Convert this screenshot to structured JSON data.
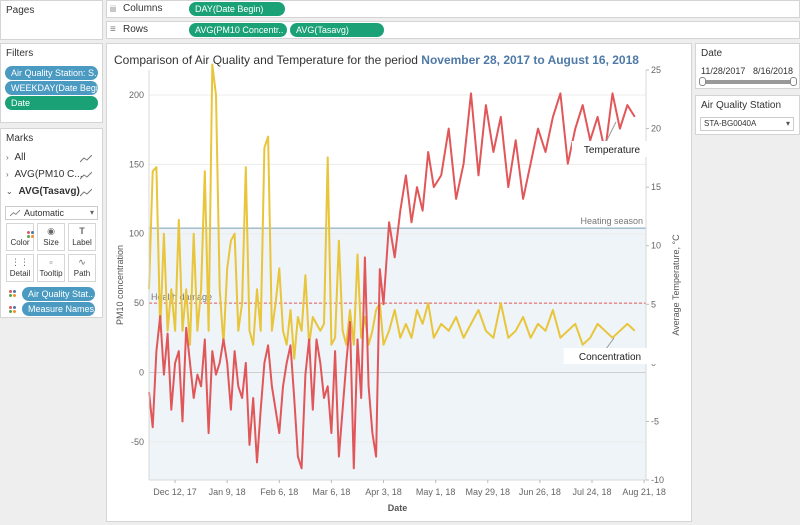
{
  "pages": {
    "title": "Pages"
  },
  "shelves": {
    "columns_label": "Columns",
    "columns_pills": [
      "DAY(Date Begin)"
    ],
    "rows_label": "Rows",
    "rows_pills": [
      "AVG(PM10 Concentr..",
      "AVG(Tasavg)"
    ]
  },
  "filters": {
    "title": "Filters",
    "items": [
      "Air Quality Station: S..",
      "WEEKDAY(Date Begi..",
      "Date"
    ]
  },
  "marks": {
    "title": "Marks",
    "items": [
      "All",
      "AVG(PM10 C...",
      "AVG(Tasavg)"
    ],
    "type": "Automatic",
    "buttons": [
      "Color",
      "Size",
      "Label",
      "Detail",
      "Tooltip",
      "Path"
    ],
    "fields": [
      "Air Quality Stat..",
      "Measure Names"
    ]
  },
  "chart": {
    "title_prefix": "Comparison of Air Quality and Temperature for the period ",
    "title_period": "November 28, 2017 to August 16, 2018"
  },
  "date_filter": {
    "title": "Date",
    "start": "11/28/2017",
    "end": "8/16/2018",
    "range_fraction": [
      0,
      1
    ]
  },
  "station_filter": {
    "title": "Air Quality Station",
    "value": "STA-BG0040A"
  },
  "colors": {
    "pm10": "#e8c53a",
    "temperature": "#e15759",
    "heating_band": "#eef4f8",
    "pill_green": "#1aa276",
    "pill_blue": "#4a9ac1",
    "title_accent": "#4e79a7"
  },
  "chart_data": {
    "type": "line",
    "xlabel": "Date",
    "ylabel_left": "PM10 concentration",
    "ylabel_right": "Average Temperature, °C",
    "x_range": [
      "2017-11-28",
      "2018-08-22"
    ],
    "x_ticks": [
      "Dec 12, 17",
      "Jan 9, 18",
      "Feb 6, 18",
      "Mar 6, 18",
      "Apr 3, 18",
      "May 1, 18",
      "May 29, 18",
      "Jun 26, 18",
      "Jul 24, 18",
      "Aug 21, 18"
    ],
    "x_tick_dates": [
      "2017-12-12",
      "2018-01-09",
      "2018-02-06",
      "2018-03-06",
      "2018-04-03",
      "2018-05-01",
      "2018-05-29",
      "2018-06-26",
      "2018-07-24",
      "2018-08-21"
    ],
    "ylim_left": [
      -77.5,
      218
    ],
    "ylim_right": [
      -10,
      25
    ],
    "yticks_left": [
      -50,
      0,
      50,
      100,
      150,
      200
    ],
    "yticks_right": [
      -10,
      -5,
      0,
      5,
      10,
      15,
      20,
      25
    ],
    "reference_lines": [
      {
        "label": "Heating season",
        "axis": "right",
        "value": 11.5
      },
      {
        "label": "Health damage",
        "axis": "left",
        "value": 50
      }
    ],
    "series": [
      {
        "name": "Concentration",
        "axis": "left",
        "x": [
          "2017-11-28",
          "2017-11-30",
          "2017-12-02",
          "2017-12-04",
          "2017-12-06",
          "2017-12-08",
          "2017-12-10",
          "2017-12-12",
          "2017-12-14",
          "2017-12-16",
          "2017-12-18",
          "2017-12-20",
          "2017-12-22",
          "2017-12-24",
          "2017-12-26",
          "2017-12-28",
          "2017-12-30",
          "2018-01-01",
          "2018-01-03",
          "2018-01-05",
          "2018-01-07",
          "2018-01-09",
          "2018-01-11",
          "2018-01-13",
          "2018-01-15",
          "2018-01-17",
          "2018-01-19",
          "2018-01-21",
          "2018-01-23",
          "2018-01-25",
          "2018-01-27",
          "2018-01-29",
          "2018-01-31",
          "2018-02-02",
          "2018-02-04",
          "2018-02-06",
          "2018-02-08",
          "2018-02-10",
          "2018-02-12",
          "2018-02-14",
          "2018-02-16",
          "2018-02-18",
          "2018-02-20",
          "2018-02-22",
          "2018-02-24",
          "2018-02-26",
          "2018-02-28",
          "2018-03-02",
          "2018-03-04",
          "2018-03-06",
          "2018-03-08",
          "2018-03-10",
          "2018-03-12",
          "2018-03-14",
          "2018-03-16",
          "2018-03-18",
          "2018-03-20",
          "2018-03-22",
          "2018-03-24",
          "2018-03-26",
          "2018-03-28",
          "2018-03-30",
          "2018-04-01",
          "2018-04-03",
          "2018-04-06",
          "2018-04-09",
          "2018-04-12",
          "2018-04-15",
          "2018-04-18",
          "2018-04-21",
          "2018-04-24",
          "2018-04-27",
          "2018-04-30",
          "2018-05-04",
          "2018-05-08",
          "2018-05-12",
          "2018-05-16",
          "2018-05-20",
          "2018-05-24",
          "2018-05-28",
          "2018-06-01",
          "2018-06-05",
          "2018-06-09",
          "2018-06-13",
          "2018-06-17",
          "2018-06-21",
          "2018-06-25",
          "2018-06-29",
          "2018-07-03",
          "2018-07-07",
          "2018-07-11",
          "2018-07-15",
          "2018-07-19",
          "2018-07-23",
          "2018-07-27",
          "2018-07-31",
          "2018-08-04",
          "2018-08-08",
          "2018-08-12",
          "2018-08-16"
        ],
        "values": [
          60,
          145,
          148,
          30,
          100,
          30,
          60,
          30,
          110,
          30,
          60,
          20,
          100,
          30,
          60,
          145,
          30,
          222,
          200,
          60,
          20,
          75,
          95,
          100,
          30,
          50,
          148,
          30,
          20,
          60,
          30,
          162,
          170,
          30,
          50,
          75,
          30,
          20,
          45,
          10,
          40,
          30,
          70,
          20,
          40,
          35,
          30,
          35,
          155,
          20,
          25,
          95,
          30,
          20,
          45,
          20,
          85,
          25,
          40,
          20,
          30,
          45,
          50,
          20,
          30,
          45,
          25,
          35,
          25,
          45,
          35,
          50,
          25,
          35,
          30,
          40,
          25,
          35,
          45,
          30,
          25,
          50,
          25,
          30,
          40,
          25,
          35,
          30,
          45,
          25,
          30,
          35,
          20,
          25,
          35,
          30,
          25,
          30,
          35,
          30
        ]
      },
      {
        "name": "Temperature",
        "axis": "right",
        "x": [
          "2017-11-28",
          "2017-11-30",
          "2017-12-02",
          "2017-12-04",
          "2017-12-06",
          "2017-12-08",
          "2017-12-10",
          "2017-12-12",
          "2017-12-14",
          "2017-12-16",
          "2017-12-18",
          "2017-12-20",
          "2017-12-22",
          "2017-12-24",
          "2017-12-26",
          "2017-12-28",
          "2017-12-30",
          "2018-01-01",
          "2018-01-03",
          "2018-01-05",
          "2018-01-07",
          "2018-01-09",
          "2018-01-11",
          "2018-01-13",
          "2018-01-15",
          "2018-01-17",
          "2018-01-19",
          "2018-01-21",
          "2018-01-23",
          "2018-01-25",
          "2018-01-27",
          "2018-01-29",
          "2018-01-31",
          "2018-02-02",
          "2018-02-04",
          "2018-02-06",
          "2018-02-08",
          "2018-02-10",
          "2018-02-12",
          "2018-02-14",
          "2018-02-16",
          "2018-02-18",
          "2018-02-20",
          "2018-02-22",
          "2018-02-24",
          "2018-02-26",
          "2018-02-28",
          "2018-03-02",
          "2018-03-04",
          "2018-03-06",
          "2018-03-08",
          "2018-03-10",
          "2018-03-12",
          "2018-03-14",
          "2018-03-16",
          "2018-03-18",
          "2018-03-20",
          "2018-03-22",
          "2018-03-24",
          "2018-03-26",
          "2018-03-28",
          "2018-03-30",
          "2018-04-01",
          "2018-04-03",
          "2018-04-06",
          "2018-04-09",
          "2018-04-12",
          "2018-04-15",
          "2018-04-18",
          "2018-04-21",
          "2018-04-24",
          "2018-04-27",
          "2018-04-30",
          "2018-05-04",
          "2018-05-08",
          "2018-05-12",
          "2018-05-16",
          "2018-05-20",
          "2018-05-24",
          "2018-05-28",
          "2018-06-01",
          "2018-06-05",
          "2018-06-09",
          "2018-06-13",
          "2018-06-17",
          "2018-06-21",
          "2018-06-25",
          "2018-06-29",
          "2018-07-03",
          "2018-07-07",
          "2018-07-11",
          "2018-07-15",
          "2018-07-19",
          "2018-07-23",
          "2018-07-27",
          "2018-07-31",
          "2018-08-04",
          "2018-08-08",
          "2018-08-12",
          "2018-08-16"
        ],
        "values": [
          -2.5,
          -5.5,
          1,
          4,
          -1,
          2.5,
          -4,
          0,
          1,
          -5,
          3,
          0,
          -3,
          -1,
          -2,
          2,
          -6,
          1,
          -1,
          0,
          2,
          0,
          -4,
          1,
          -2,
          -3,
          0,
          -7,
          -3,
          -8.5,
          -4,
          0,
          1.5,
          -2,
          -4,
          -6,
          -2,
          0,
          1.5,
          -3,
          -8,
          -9,
          -1,
          2,
          -4,
          2,
          0,
          -3,
          -2,
          -6,
          1,
          -8,
          -4,
          0,
          3.5,
          -9,
          2,
          -3,
          9,
          -2,
          -6,
          -8,
          8,
          5,
          12,
          9,
          13,
          16,
          12,
          15,
          13,
          18,
          15,
          16,
          20,
          14,
          17,
          23,
          16,
          22,
          18,
          21,
          15,
          19,
          14,
          17,
          20,
          18,
          21,
          23,
          17,
          20,
          22,
          19,
          21,
          18,
          23,
          20,
          22,
          21
        ]
      }
    ],
    "annotations": [
      "Temperature",
      "Concentration"
    ]
  }
}
